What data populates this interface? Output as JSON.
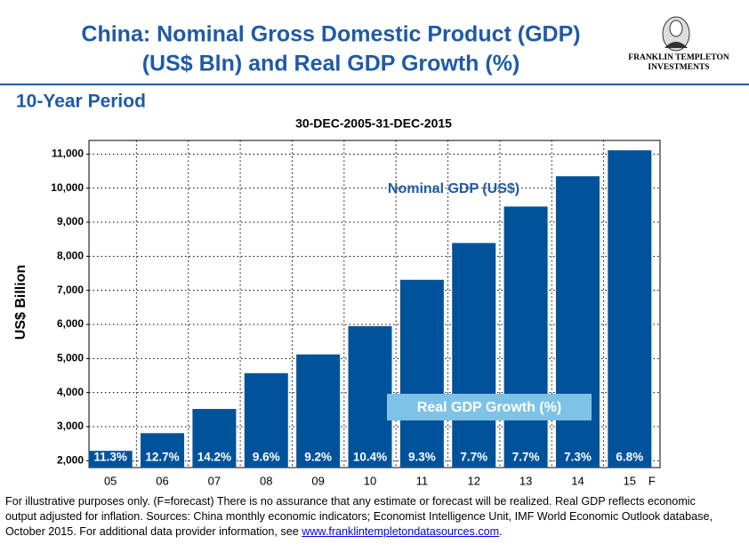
{
  "header": {
    "title_line1": "China: Nominal Gross Domestic Product (GDP)",
    "title_line2": "(US$ Bln) and Real GDP Growth (%)",
    "logo_line1": "FRANKLIN TEMPLETON",
    "logo_line2": "INVESTMENTS",
    "section": "10-Year Period"
  },
  "chart_data": {
    "type": "bar",
    "title": "30-DEC-2005-31-DEC-2015",
    "y_label": "US$ Billion",
    "categories": [
      "05",
      "06",
      "07",
      "08",
      "09",
      "10",
      "11",
      "12",
      "13",
      "14",
      "15"
    ],
    "forecast_marker": "F",
    "values": [
      2290,
      2810,
      3520,
      4570,
      5120,
      5950,
      7310,
      8390,
      9460,
      10350,
      11110
    ],
    "value_labels": [
      "11.3%",
      "12.7%",
      "14.2%",
      "9.6%",
      "9.2%",
      "10.4%",
      "9.3%",
      "7.7%",
      "7.7%",
      "7.3%",
      "6.8%"
    ],
    "color": "#00539b",
    "annotations": [
      "Nominal GDP (US$)",
      "Real GDP Growth (%)"
    ],
    "ylim": [
      1800,
      11400
    ],
    "yticks": [
      {
        "value": 2000,
        "label": "2,000"
      },
      {
        "value": 3000,
        "label": "3,000"
      },
      {
        "value": 4000,
        "label": "4,000"
      },
      {
        "value": 5000,
        "label": "5,000"
      },
      {
        "value": 6000,
        "label": "6,000"
      },
      {
        "value": 7000,
        "label": "7,000"
      },
      {
        "value": 8000,
        "label": "8,000"
      },
      {
        "value": 9000,
        "label": "9,000"
      },
      {
        "value": 10000,
        "label": "10,000"
      },
      {
        "value": 11000,
        "label": "11,000"
      }
    ],
    "grid": true
  },
  "footnote": {
    "text": "For  illustrative purposes only. (F=forecast) There is no assurance that any estimate  or forecast will be realized.  Real GDP reflects economic output  adjusted for inflation. Sources: China monthly economic indicators; Economist Intelligence Unit, IMF  World Economic Outlook database, October 2015. For additional data  provider information, see ",
    "link": "www.franklintempletondatasources.com",
    "end": "."
  }
}
